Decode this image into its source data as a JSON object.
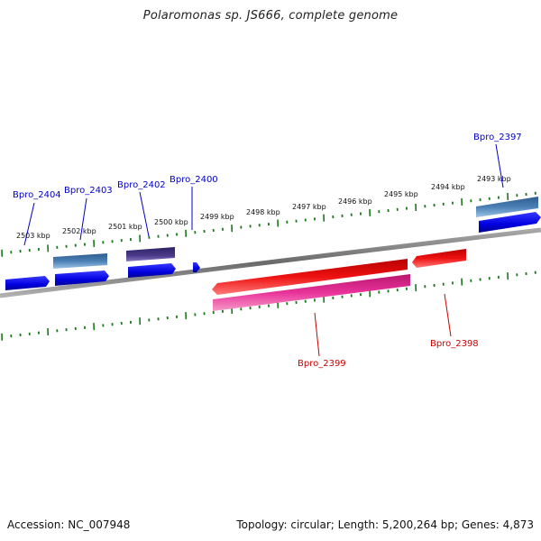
{
  "title": "Polaromonas sp. JS666, complete genome",
  "footer": {
    "accession": "Accession: NC_007948",
    "summary": "Topology: circular; Length: 5,200,264 bp; Genes: 4,873"
  },
  "colors": {
    "backbone": "#808080",
    "tick": "#1a7a1a",
    "forward_gene": "#0000ee",
    "forward_label": "#0000cc",
    "steelblue_feature": "#4a7fb5",
    "purple_feature": "#4a3a8a",
    "reverse_gene": "#ee1111",
    "reverse_label": "#cc0000",
    "magenta_feature": "#e8339a"
  },
  "position_ticks": [
    "2503 kbp",
    "2502 kbp",
    "2501 kbp",
    "2500 kbp",
    "2499 kbp",
    "2498 kbp",
    "2497 kbp",
    "2496 kbp",
    "2495 kbp",
    "2494 kbp",
    "2493 kbp"
  ],
  "gene_labels": {
    "forward": [
      "Bpro_2404",
      "Bpro_2403",
      "Bpro_2402",
      "Bpro_2400",
      "Bpro_2397"
    ],
    "reverse": [
      "Bpro_2399",
      "Bpro_2398"
    ]
  }
}
